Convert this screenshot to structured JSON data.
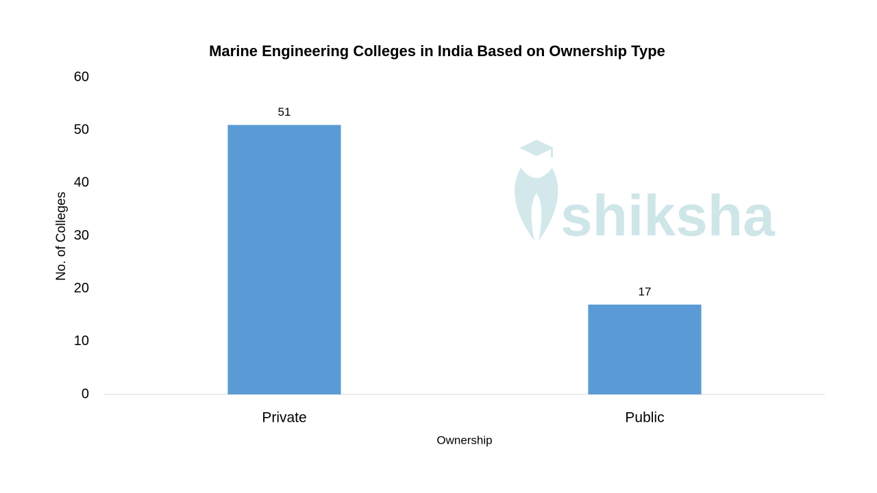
{
  "chart_data": {
    "type": "bar",
    "title": "Marine Engineering Colleges in India Based on Ownership Type",
    "categories": [
      "Private",
      "Public"
    ],
    "values": [
      51,
      17
    ],
    "color": "#5b9bd5",
    "ylim": [
      0,
      60
    ],
    "yticks": [
      0,
      10,
      20,
      30,
      40,
      50,
      60
    ],
    "x_label": "Ownership",
    "y_label": "No. of Colleges",
    "grid": false,
    "watermark": "shiksha"
  }
}
